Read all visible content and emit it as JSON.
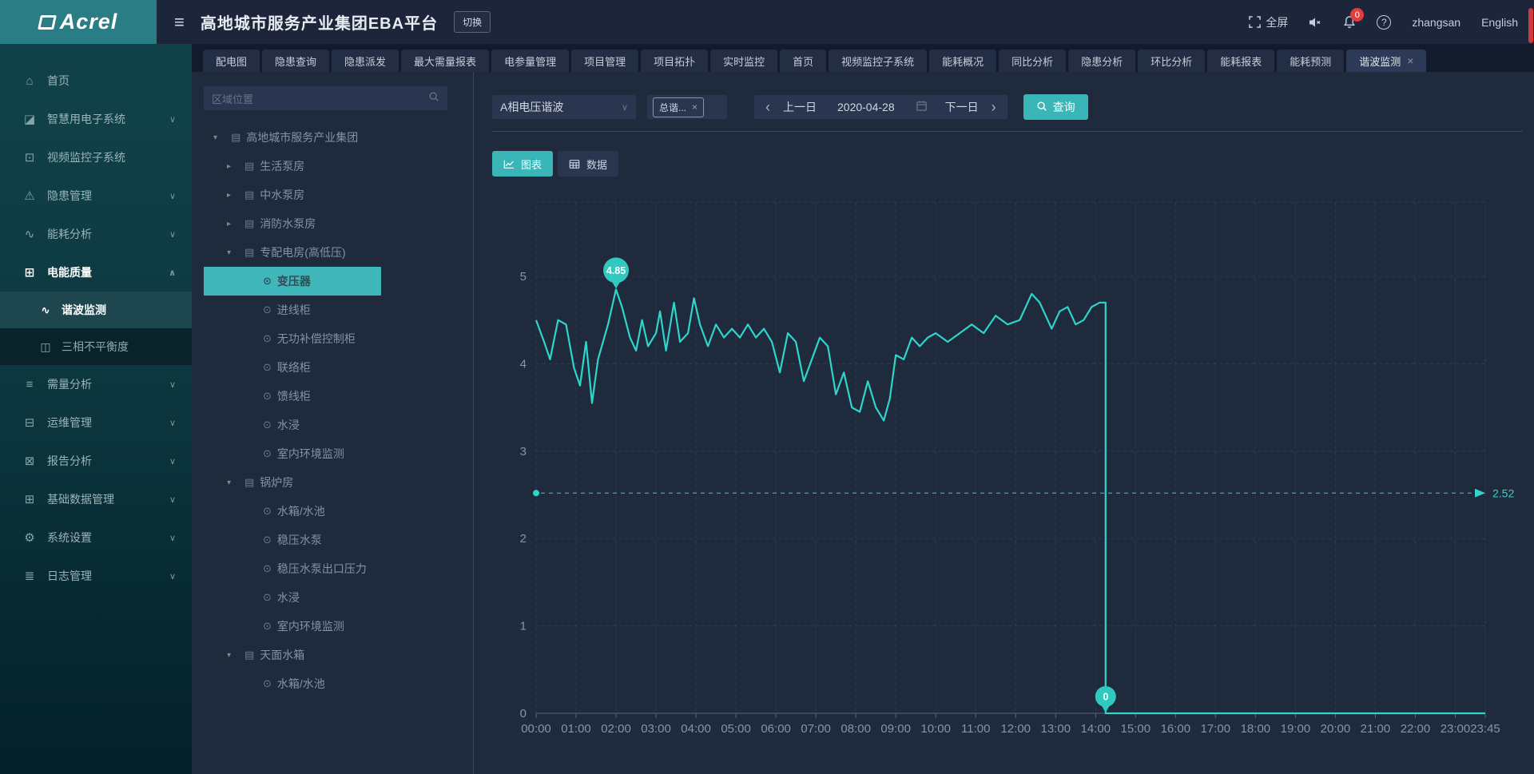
{
  "header": {
    "logo": "Acrel",
    "title": "高地城市服务产业集团EBA平台",
    "switch_label": "切换",
    "fullscreen_label": "全屏",
    "notification_count": "0",
    "username": "zhangsan",
    "language": "English"
  },
  "icons": {
    "menu_fold": "≡",
    "help": "?",
    "caret_down": "▾",
    "caret_right": "▸",
    "building": "▤",
    "device": "⊙",
    "chevron_down": "∨",
    "chevron_up": "∧",
    "close": "×",
    "arrow_left": "‹",
    "arrow_right": "›",
    "home": "⌂",
    "smart_power": "◪",
    "video": "⊡",
    "hazard": "⚠",
    "energy": "∿",
    "power_quality": "⊞",
    "harmonic": "∿",
    "unbalance": "◫",
    "demand": "≡",
    "om": "⊟",
    "report": "⊠",
    "base_data": "⊞",
    "settings": "⚙",
    "log": "≣"
  },
  "tabs": [
    {
      "label": "配电图"
    },
    {
      "label": "隐患查询"
    },
    {
      "label": "隐患派发"
    },
    {
      "label": "最大需量报表"
    },
    {
      "label": "电参量管理"
    },
    {
      "label": "项目管理"
    },
    {
      "label": "项目拓扑"
    },
    {
      "label": "实时监控"
    },
    {
      "label": "首页"
    },
    {
      "label": "视频监控子系统"
    },
    {
      "label": "能耗概况"
    },
    {
      "label": "同比分析"
    },
    {
      "label": "隐患分析"
    },
    {
      "label": "环比分析"
    },
    {
      "label": "能耗报表"
    },
    {
      "label": "能耗预测"
    },
    {
      "label": "谐波监测",
      "active": true
    }
  ],
  "sidebar": {
    "items": [
      {
        "label": "首页"
      },
      {
        "label": "智慧用电子系统"
      },
      {
        "label": "视频监控子系统"
      },
      {
        "label": "隐患管理"
      },
      {
        "label": "能耗分析"
      },
      {
        "label": "电能质量",
        "expanded": true,
        "children": [
          {
            "label": "谐波监测",
            "active": true
          },
          {
            "label": "三相不平衡度"
          }
        ]
      },
      {
        "label": "需量分析"
      },
      {
        "label": "运维管理"
      },
      {
        "label": "报告分析"
      },
      {
        "label": "基础数据管理"
      },
      {
        "label": "系统设置"
      },
      {
        "label": "日志管理"
      }
    ]
  },
  "tree": {
    "search_placeholder": "区域位置",
    "nodes": [
      {
        "label": "高地城市服务产业集团",
        "level": 0,
        "type": "building",
        "state": "expanded"
      },
      {
        "label": "生活泵房",
        "level": 1,
        "type": "building",
        "state": "collapsed"
      },
      {
        "label": "中水泵房",
        "level": 1,
        "type": "building",
        "state": "collapsed"
      },
      {
        "label": "消防水泵房",
        "level": 1,
        "type": "building",
        "state": "collapsed"
      },
      {
        "label": "专配电房(高低压)",
        "level": 1,
        "type": "building",
        "state": "expanded"
      },
      {
        "label": "变压器",
        "level": 2,
        "type": "device",
        "selected": true
      },
      {
        "label": "进线柜",
        "level": 2,
        "type": "device"
      },
      {
        "label": "无功补偿控制柜",
        "level": 2,
        "type": "device"
      },
      {
        "label": "联络柜",
        "level": 2,
        "type": "device"
      },
      {
        "label": "馈线柜",
        "level": 2,
        "type": "device"
      },
      {
        "label": "水浸",
        "level": 2,
        "type": "device"
      },
      {
        "label": "室内环境监测",
        "level": 2,
        "type": "device"
      },
      {
        "label": "锅炉房",
        "level": 1,
        "type": "building",
        "state": "expanded"
      },
      {
        "label": "水箱/水池",
        "level": 2,
        "type": "device"
      },
      {
        "label": "稳压水泵",
        "level": 2,
        "type": "device"
      },
      {
        "label": "稳压水泵出口压力",
        "level": 2,
        "type": "device"
      },
      {
        "label": "水浸",
        "level": 2,
        "type": "device"
      },
      {
        "label": "室内环境监测",
        "level": 2,
        "type": "device"
      },
      {
        "label": "天面水箱",
        "level": 1,
        "type": "building",
        "state": "expanded"
      },
      {
        "label": "水箱/水池",
        "level": 2,
        "type": "device"
      }
    ]
  },
  "filters": {
    "harmonic_type": "A相电压谐波",
    "tag": "总谐...",
    "prev_day": "上一日",
    "date": "2020-04-28",
    "next_day": "下一日",
    "query": "查询"
  },
  "view_toggle": {
    "chart": "图表",
    "data": "数据"
  },
  "chart_data": {
    "type": "line",
    "title": "",
    "xlabel": "",
    "ylabel": "",
    "xlim": [
      0,
      23.75
    ],
    "ylim": [
      0,
      5
    ],
    "y_ticks": [
      0,
      1,
      2,
      3,
      4,
      5
    ],
    "x_labels": [
      "00:00",
      "01:00",
      "02:00",
      "03:00",
      "04:00",
      "05:00",
      "06:00",
      "07:00",
      "08:00",
      "09:00",
      "10:00",
      "11:00",
      "12:00",
      "13:00",
      "14:00",
      "15:00",
      "16:00",
      "17:00",
      "18:00",
      "19:00",
      "20:00",
      "21:00",
      "22:00",
      "23:00",
      "23:45"
    ],
    "grid": "dashed",
    "line_color": "#2fd4ca",
    "series": [
      {
        "points": [
          [
            0,
            4.5
          ],
          [
            0.2,
            4.25
          ],
          [
            0.35,
            4.05
          ],
          [
            0.55,
            4.5
          ],
          [
            0.75,
            4.45
          ],
          [
            0.95,
            3.95
          ],
          [
            1.1,
            3.75
          ],
          [
            1.25,
            4.25
          ],
          [
            1.4,
            3.55
          ],
          [
            1.55,
            4.05
          ],
          [
            1.8,
            4.45
          ],
          [
            2,
            4.85
          ],
          [
            2.15,
            4.65
          ],
          [
            2.35,
            4.3
          ],
          [
            2.5,
            4.15
          ],
          [
            2.65,
            4.5
          ],
          [
            2.8,
            4.2
          ],
          [
            3,
            4.35
          ],
          [
            3.1,
            4.6
          ],
          [
            3.25,
            4.15
          ],
          [
            3.45,
            4.7
          ],
          [
            3.6,
            4.25
          ],
          [
            3.8,
            4.35
          ],
          [
            3.95,
            4.75
          ],
          [
            4.1,
            4.45
          ],
          [
            4.3,
            4.2
          ],
          [
            4.5,
            4.45
          ],
          [
            4.7,
            4.3
          ],
          [
            4.9,
            4.4
          ],
          [
            5.1,
            4.3
          ],
          [
            5.3,
            4.45
          ],
          [
            5.5,
            4.3
          ],
          [
            5.7,
            4.4
          ],
          [
            5.9,
            4.25
          ],
          [
            6.1,
            3.9
          ],
          [
            6.3,
            4.35
          ],
          [
            6.5,
            4.25
          ],
          [
            6.7,
            3.8
          ],
          [
            6.9,
            4.05
          ],
          [
            7.1,
            4.3
          ],
          [
            7.3,
            4.2
          ],
          [
            7.5,
            3.65
          ],
          [
            7.7,
            3.9
          ],
          [
            7.9,
            3.5
          ],
          [
            8.1,
            3.45
          ],
          [
            8.3,
            3.8
          ],
          [
            8.5,
            3.5
          ],
          [
            8.7,
            3.35
          ],
          [
            8.85,
            3.6
          ],
          [
            9,
            4.1
          ],
          [
            9.2,
            4.05
          ],
          [
            9.4,
            4.3
          ],
          [
            9.6,
            4.2
          ],
          [
            9.8,
            4.3
          ],
          [
            10,
            4.35
          ],
          [
            10.3,
            4.25
          ],
          [
            10.6,
            4.35
          ],
          [
            10.9,
            4.45
          ],
          [
            11.2,
            4.35
          ],
          [
            11.5,
            4.55
          ],
          [
            11.8,
            4.45
          ],
          [
            12.1,
            4.5
          ],
          [
            12.4,
            4.8
          ],
          [
            12.6,
            4.7
          ],
          [
            12.9,
            4.4
          ],
          [
            13.1,
            4.6
          ],
          [
            13.3,
            4.65
          ],
          [
            13.5,
            4.45
          ],
          [
            13.7,
            4.5
          ],
          [
            13.9,
            4.65
          ],
          [
            14.1,
            4.7
          ],
          [
            14.25,
            4.7
          ],
          [
            14.25,
            0
          ],
          [
            23.75,
            0
          ]
        ]
      }
    ],
    "markers": [
      {
        "x": 2.0,
        "y": 4.85,
        "label": "4.85"
      },
      {
        "x": 14.25,
        "y": 0,
        "label": "0"
      }
    ],
    "reference_line": {
      "value": 2.52,
      "label": "2.52"
    }
  }
}
